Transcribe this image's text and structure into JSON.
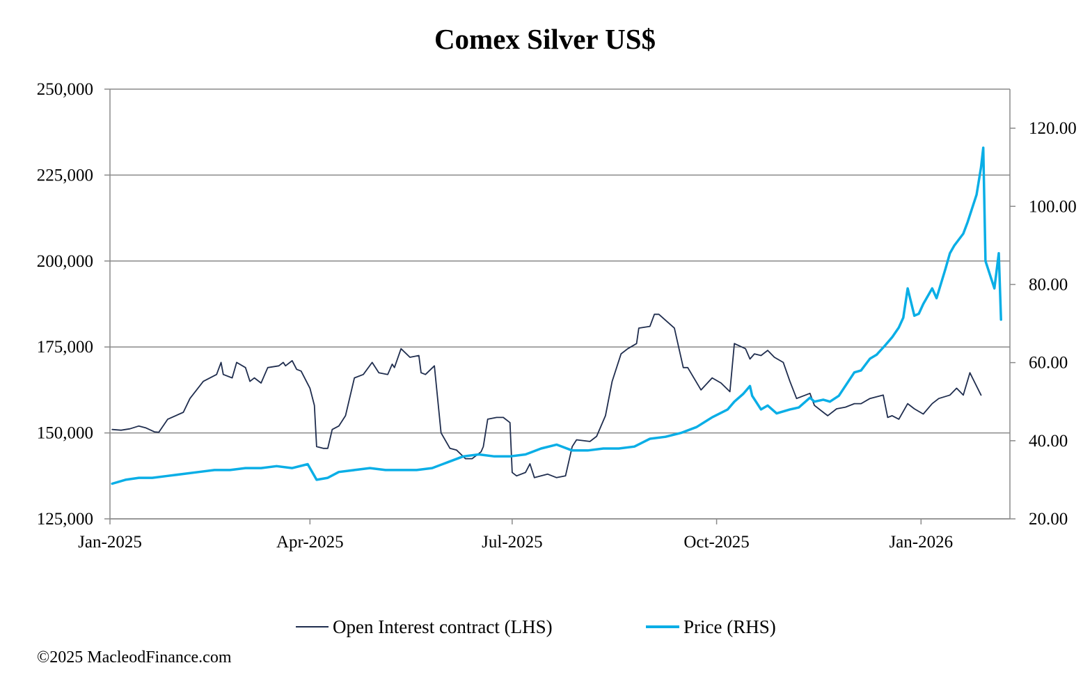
{
  "chart_data": {
    "type": "line",
    "title": "Comex Silver US$",
    "xlabel": "",
    "ylabel_left": "",
    "ylabel_right": "",
    "x_ticks": [
      "Jan-2025",
      "Apr-2025",
      "Jul-2025",
      "Oct-2025",
      "Jan-2026"
    ],
    "x_range": [
      "2025-01-01",
      "2026-02-10"
    ],
    "left_axis": {
      "ticks": [
        "125,000",
        "150,000",
        "175,000",
        "200,000",
        "225,000",
        "250,000"
      ],
      "ylim": [
        125000,
        250000
      ]
    },
    "right_axis": {
      "ticks": [
        "20.00",
        "40.00",
        "60.00",
        "80.00",
        "100.00",
        "120.00"
      ],
      "ylim": [
        20,
        130
      ]
    },
    "grid": "horizontal",
    "legend_position": "bottom",
    "series": [
      {
        "name": "Open Interest contract (LHS)",
        "axis": "left",
        "color": "#1f2d4e",
        "points": [
          [
            "2025-01-02",
            151000
          ],
          [
            "2025-01-06",
            150800
          ],
          [
            "2025-01-10",
            151200
          ],
          [
            "2025-01-14",
            152000
          ],
          [
            "2025-01-17",
            151500
          ],
          [
            "2025-01-21",
            150300
          ],
          [
            "2025-01-23",
            150200
          ],
          [
            "2025-01-27",
            154000
          ],
          [
            "2025-02-03",
            156000
          ],
          [
            "2025-02-06",
            160000
          ],
          [
            "2025-02-12",
            165000
          ],
          [
            "2025-02-18",
            167000
          ],
          [
            "2025-02-20",
            170500
          ],
          [
            "2025-02-21",
            167000
          ],
          [
            "2025-02-25",
            166000
          ],
          [
            "2025-02-27",
            170500
          ],
          [
            "2025-03-03",
            169000
          ],
          [
            "2025-03-05",
            165000
          ],
          [
            "2025-03-07",
            166000
          ],
          [
            "2025-03-10",
            164500
          ],
          [
            "2025-03-13",
            169000
          ],
          [
            "2025-03-18",
            169500
          ],
          [
            "2025-03-20",
            170500
          ],
          [
            "2025-03-21",
            169500
          ],
          [
            "2025-03-24",
            171000
          ],
          [
            "2025-03-26",
            168500
          ],
          [
            "2025-03-28",
            168000
          ],
          [
            "2025-04-01",
            163000
          ],
          [
            "2025-04-03",
            158000
          ],
          [
            "2025-04-04",
            146000
          ],
          [
            "2025-04-07",
            145500
          ],
          [
            "2025-04-09",
            145500
          ],
          [
            "2025-04-11",
            151000
          ],
          [
            "2025-04-14",
            152000
          ],
          [
            "2025-04-17",
            155000
          ],
          [
            "2025-04-21",
            166000
          ],
          [
            "2025-04-25",
            167000
          ],
          [
            "2025-04-29",
            170500
          ],
          [
            "2025-05-02",
            167500
          ],
          [
            "2025-05-06",
            167000
          ],
          [
            "2025-05-08",
            170000
          ],
          [
            "2025-05-09",
            169000
          ],
          [
            "2025-05-12",
            174500
          ],
          [
            "2025-05-16",
            172000
          ],
          [
            "2025-05-20",
            172500
          ],
          [
            "2025-05-21",
            167500
          ],
          [
            "2025-05-23",
            167000
          ],
          [
            "2025-05-27",
            169500
          ],
          [
            "2025-05-30",
            150000
          ],
          [
            "2025-06-03",
            145500
          ],
          [
            "2025-06-06",
            145000
          ],
          [
            "2025-06-10",
            142500
          ],
          [
            "2025-06-13",
            142500
          ],
          [
            "2025-06-17",
            144500
          ],
          [
            "2025-06-18",
            146000
          ],
          [
            "2025-06-20",
            154000
          ],
          [
            "2025-06-24",
            154500
          ],
          [
            "2025-06-27",
            154500
          ],
          [
            "2025-06-30",
            153000
          ],
          [
            "2025-07-01",
            138500
          ],
          [
            "2025-07-03",
            137500
          ],
          [
            "2025-07-07",
            138500
          ],
          [
            "2025-07-09",
            141000
          ],
          [
            "2025-07-11",
            137000
          ],
          [
            "2025-07-17",
            138000
          ],
          [
            "2025-07-21",
            137000
          ],
          [
            "2025-07-25",
            137500
          ],
          [
            "2025-07-28",
            146000
          ],
          [
            "2025-07-30",
            148000
          ],
          [
            "2025-08-05",
            147500
          ],
          [
            "2025-08-08",
            149000
          ],
          [
            "2025-08-12",
            155000
          ],
          [
            "2025-08-15",
            165000
          ],
          [
            "2025-08-19",
            173000
          ],
          [
            "2025-08-22",
            174500
          ],
          [
            "2025-08-26",
            176000
          ],
          [
            "2025-08-27",
            180500
          ],
          [
            "2025-09-01",
            181000
          ],
          [
            "2025-09-03",
            184500
          ],
          [
            "2025-09-05",
            184500
          ],
          [
            "2025-09-12",
            180500
          ],
          [
            "2025-09-16",
            169000
          ],
          [
            "2025-09-18",
            169000
          ],
          [
            "2025-09-24",
            162500
          ],
          [
            "2025-09-29",
            166000
          ],
          [
            "2025-10-03",
            164500
          ],
          [
            "2025-10-07",
            162000
          ],
          [
            "2025-10-09",
            176000
          ],
          [
            "2025-10-14",
            174500
          ],
          [
            "2025-10-16",
            171500
          ],
          [
            "2025-10-18",
            173000
          ],
          [
            "2025-10-21",
            172500
          ],
          [
            "2025-10-24",
            174000
          ],
          [
            "2025-10-27",
            172000
          ],
          [
            "2025-10-31",
            170500
          ],
          [
            "2025-11-03",
            165000
          ],
          [
            "2025-11-06",
            160000
          ],
          [
            "2025-11-12",
            161500
          ],
          [
            "2025-11-14",
            158000
          ],
          [
            "2025-11-18",
            156000
          ],
          [
            "2025-11-20",
            155000
          ],
          [
            "2025-11-24",
            157000
          ],
          [
            "2025-11-28",
            157500
          ],
          [
            "2025-12-02",
            158500
          ],
          [
            "2025-12-05",
            158500
          ],
          [
            "2025-12-09",
            160000
          ],
          [
            "2025-12-15",
            161000
          ],
          [
            "2025-12-17",
            154500
          ],
          [
            "2025-12-19",
            155000
          ],
          [
            "2025-12-22",
            154000
          ],
          [
            "2025-12-26",
            158500
          ],
          [
            "2025-12-29",
            157000
          ],
          [
            "2026-01-02",
            155500
          ],
          [
            "2026-01-06",
            158500
          ],
          [
            "2026-01-09",
            160000
          ],
          [
            "2026-01-14",
            161000
          ],
          [
            "2026-01-17",
            163000
          ],
          [
            "2026-01-20",
            161000
          ],
          [
            "2026-01-23",
            167500
          ],
          [
            "2026-01-28",
            161000
          ]
        ]
      },
      {
        "name": "Price (RHS)",
        "axis": "right",
        "color": "#0aaee6",
        "points": [
          [
            "2025-01-02",
            29.0
          ],
          [
            "2025-01-08",
            30.0
          ],
          [
            "2025-01-14",
            30.5
          ],
          [
            "2025-01-20",
            30.5
          ],
          [
            "2025-01-27",
            31.0
          ],
          [
            "2025-02-03",
            31.5
          ],
          [
            "2025-02-10",
            32.0
          ],
          [
            "2025-02-17",
            32.5
          ],
          [
            "2025-02-24",
            32.5
          ],
          [
            "2025-03-03",
            33.0
          ],
          [
            "2025-03-10",
            33.0
          ],
          [
            "2025-03-17",
            33.5
          ],
          [
            "2025-03-24",
            33.0
          ],
          [
            "2025-03-31",
            34.0
          ],
          [
            "2025-04-04",
            30.0
          ],
          [
            "2025-04-09",
            30.5
          ],
          [
            "2025-04-14",
            32.0
          ],
          [
            "2025-04-21",
            32.5
          ],
          [
            "2025-04-28",
            33.0
          ],
          [
            "2025-05-05",
            32.5
          ],
          [
            "2025-05-12",
            32.5
          ],
          [
            "2025-05-19",
            32.5
          ],
          [
            "2025-05-26",
            33.0
          ],
          [
            "2025-06-02",
            34.5
          ],
          [
            "2025-06-09",
            36.0
          ],
          [
            "2025-06-16",
            36.5
          ],
          [
            "2025-06-23",
            36.0
          ],
          [
            "2025-06-30",
            36.0
          ],
          [
            "2025-07-07",
            36.5
          ],
          [
            "2025-07-14",
            38.0
          ],
          [
            "2025-07-21",
            39.0
          ],
          [
            "2025-07-28",
            37.5
          ],
          [
            "2025-08-04",
            37.5
          ],
          [
            "2025-08-11",
            38.0
          ],
          [
            "2025-08-18",
            38.0
          ],
          [
            "2025-08-25",
            38.5
          ],
          [
            "2025-09-01",
            40.5
          ],
          [
            "2025-09-08",
            41.0
          ],
          [
            "2025-09-15",
            42.0
          ],
          [
            "2025-09-22",
            43.5
          ],
          [
            "2025-09-29",
            46.0
          ],
          [
            "2025-10-06",
            48.0
          ],
          [
            "2025-10-09",
            50.0
          ],
          [
            "2025-10-13",
            52.0
          ],
          [
            "2025-10-16",
            54.0
          ],
          [
            "2025-10-17",
            51.5
          ],
          [
            "2025-10-21",
            48.0
          ],
          [
            "2025-10-24",
            49.0
          ],
          [
            "2025-10-28",
            47.0
          ],
          [
            "2025-11-03",
            48.0
          ],
          [
            "2025-11-07",
            48.5
          ],
          [
            "2025-11-12",
            51.0
          ],
          [
            "2025-11-14",
            50.0
          ],
          [
            "2025-11-18",
            50.5
          ],
          [
            "2025-11-21",
            50.0
          ],
          [
            "2025-11-25",
            51.5
          ],
          [
            "2025-12-02",
            57.5
          ],
          [
            "2025-12-05",
            58.0
          ],
          [
            "2025-12-09",
            61.0
          ],
          [
            "2025-12-12",
            62.0
          ],
          [
            "2025-12-16",
            64.5
          ],
          [
            "2025-12-19",
            66.5
          ],
          [
            "2025-12-22",
            69.0
          ],
          [
            "2025-12-24",
            71.5
          ],
          [
            "2025-12-26",
            79.0
          ],
          [
            "2025-12-29",
            72.0
          ],
          [
            "2025-12-31",
            72.5
          ],
          [
            "2026-01-02",
            75.0
          ],
          [
            "2026-01-06",
            79.0
          ],
          [
            "2026-01-08",
            76.5
          ],
          [
            "2026-01-12",
            84.0
          ],
          [
            "2026-01-14",
            88.0
          ],
          [
            "2026-01-16",
            90.0
          ],
          [
            "2026-01-20",
            93.0
          ],
          [
            "2026-01-22",
            96.0
          ],
          [
            "2026-01-26",
            103.0
          ],
          [
            "2026-01-28",
            110.0
          ],
          [
            "2026-01-29",
            115.0
          ],
          [
            "2026-01-30",
            86.0
          ],
          [
            "2026-02-03",
            79.0
          ],
          [
            "2026-02-05",
            88.0
          ],
          [
            "2026-02-06",
            71.0
          ]
        ]
      }
    ]
  },
  "credit": "©2025 MacleodFinance.com"
}
